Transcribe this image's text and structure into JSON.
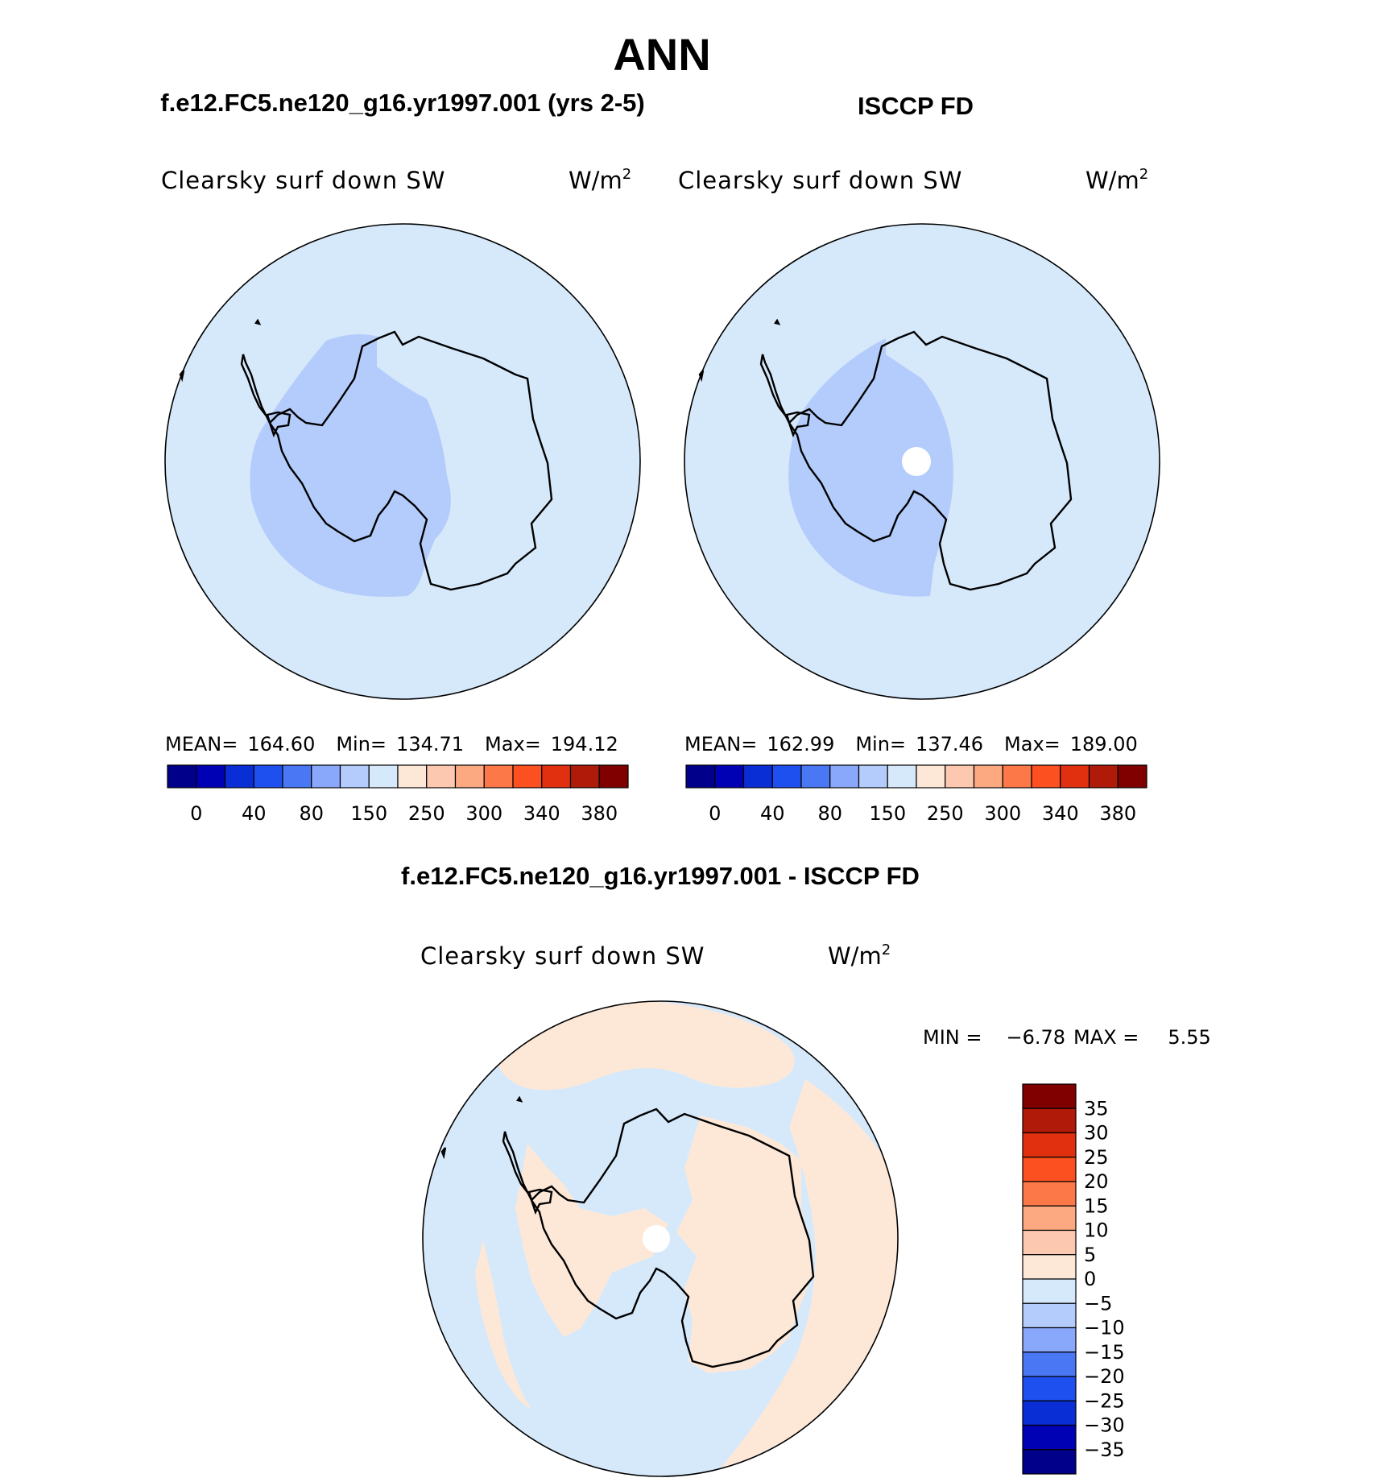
{
  "page_title": "ANN",
  "colors": {
    "ocean_fill": "#d6e9fb",
    "reduced_fill": "#b4ccfb",
    "positive_fill": "#fde8d8",
    "missing_fill": "#ffffff",
    "outline": "#000000"
  },
  "top_left": {
    "title": "f.e12.FC5.ne120_g16.yr1997.001 (yrs 2-5)",
    "variable": "Clearsky surf down SW",
    "units_base": "W/m",
    "units_exp": "2",
    "stats": {
      "mean_label": "MEAN=",
      "mean": "164.60",
      "min_label": "Min=",
      "min": "134.71",
      "max_label": "Max=",
      "max": "194.12"
    }
  },
  "top_right": {
    "title": "ISCCP FD",
    "variable": "Clearsky surf down SW",
    "units_base": "W/m",
    "units_exp": "2",
    "stats": {
      "mean_label": "MEAN=",
      "mean": "162.99",
      "min_label": "Min=",
      "min": "137.46",
      "max_label": "Max=",
      "max": "189.00"
    }
  },
  "bottom": {
    "title": "f.e12.FC5.ne120_g16.yr1997.001 - ISCCP FD",
    "variable": "Clearsky surf down SW",
    "units_base": "W/m",
    "units_exp": "2",
    "min_label": "MIN =",
    "min": "−6.78",
    "max_label": "MAX =",
    "max": "5.55"
  },
  "colorbar_abs": {
    "colors": [
      "#00008a",
      "#0000b5",
      "#0a2ed6",
      "#1e50f0",
      "#4a78f5",
      "#8aa8fb",
      "#b4ccfb",
      "#d6e9fb",
      "#fde8d8",
      "#fcc8b0",
      "#fca880",
      "#fc7848",
      "#fc5020",
      "#e03010",
      "#b01a08",
      "#800000"
    ],
    "labels": [
      "0",
      "40",
      "80",
      "150",
      "250",
      "300",
      "340",
      "380"
    ]
  },
  "colorbar_diff": {
    "colors_top_to_bottom": [
      "#800000",
      "#b01a08",
      "#e03010",
      "#fc5020",
      "#fc7848",
      "#fca880",
      "#fcc8b0",
      "#fde8d8",
      "#d6e9fb",
      "#b4ccfb",
      "#8aa8fb",
      "#4a78f5",
      "#1e50f0",
      "#0a2ed6",
      "#0000b5",
      "#00008a"
    ],
    "labels_top_to_bottom": [
      "35",
      "30",
      "25",
      "20",
      "15",
      "10",
      "5",
      "0",
      "−5",
      "−10",
      "−15",
      "−20",
      "−25",
      "−30",
      "−35"
    ]
  }
}
